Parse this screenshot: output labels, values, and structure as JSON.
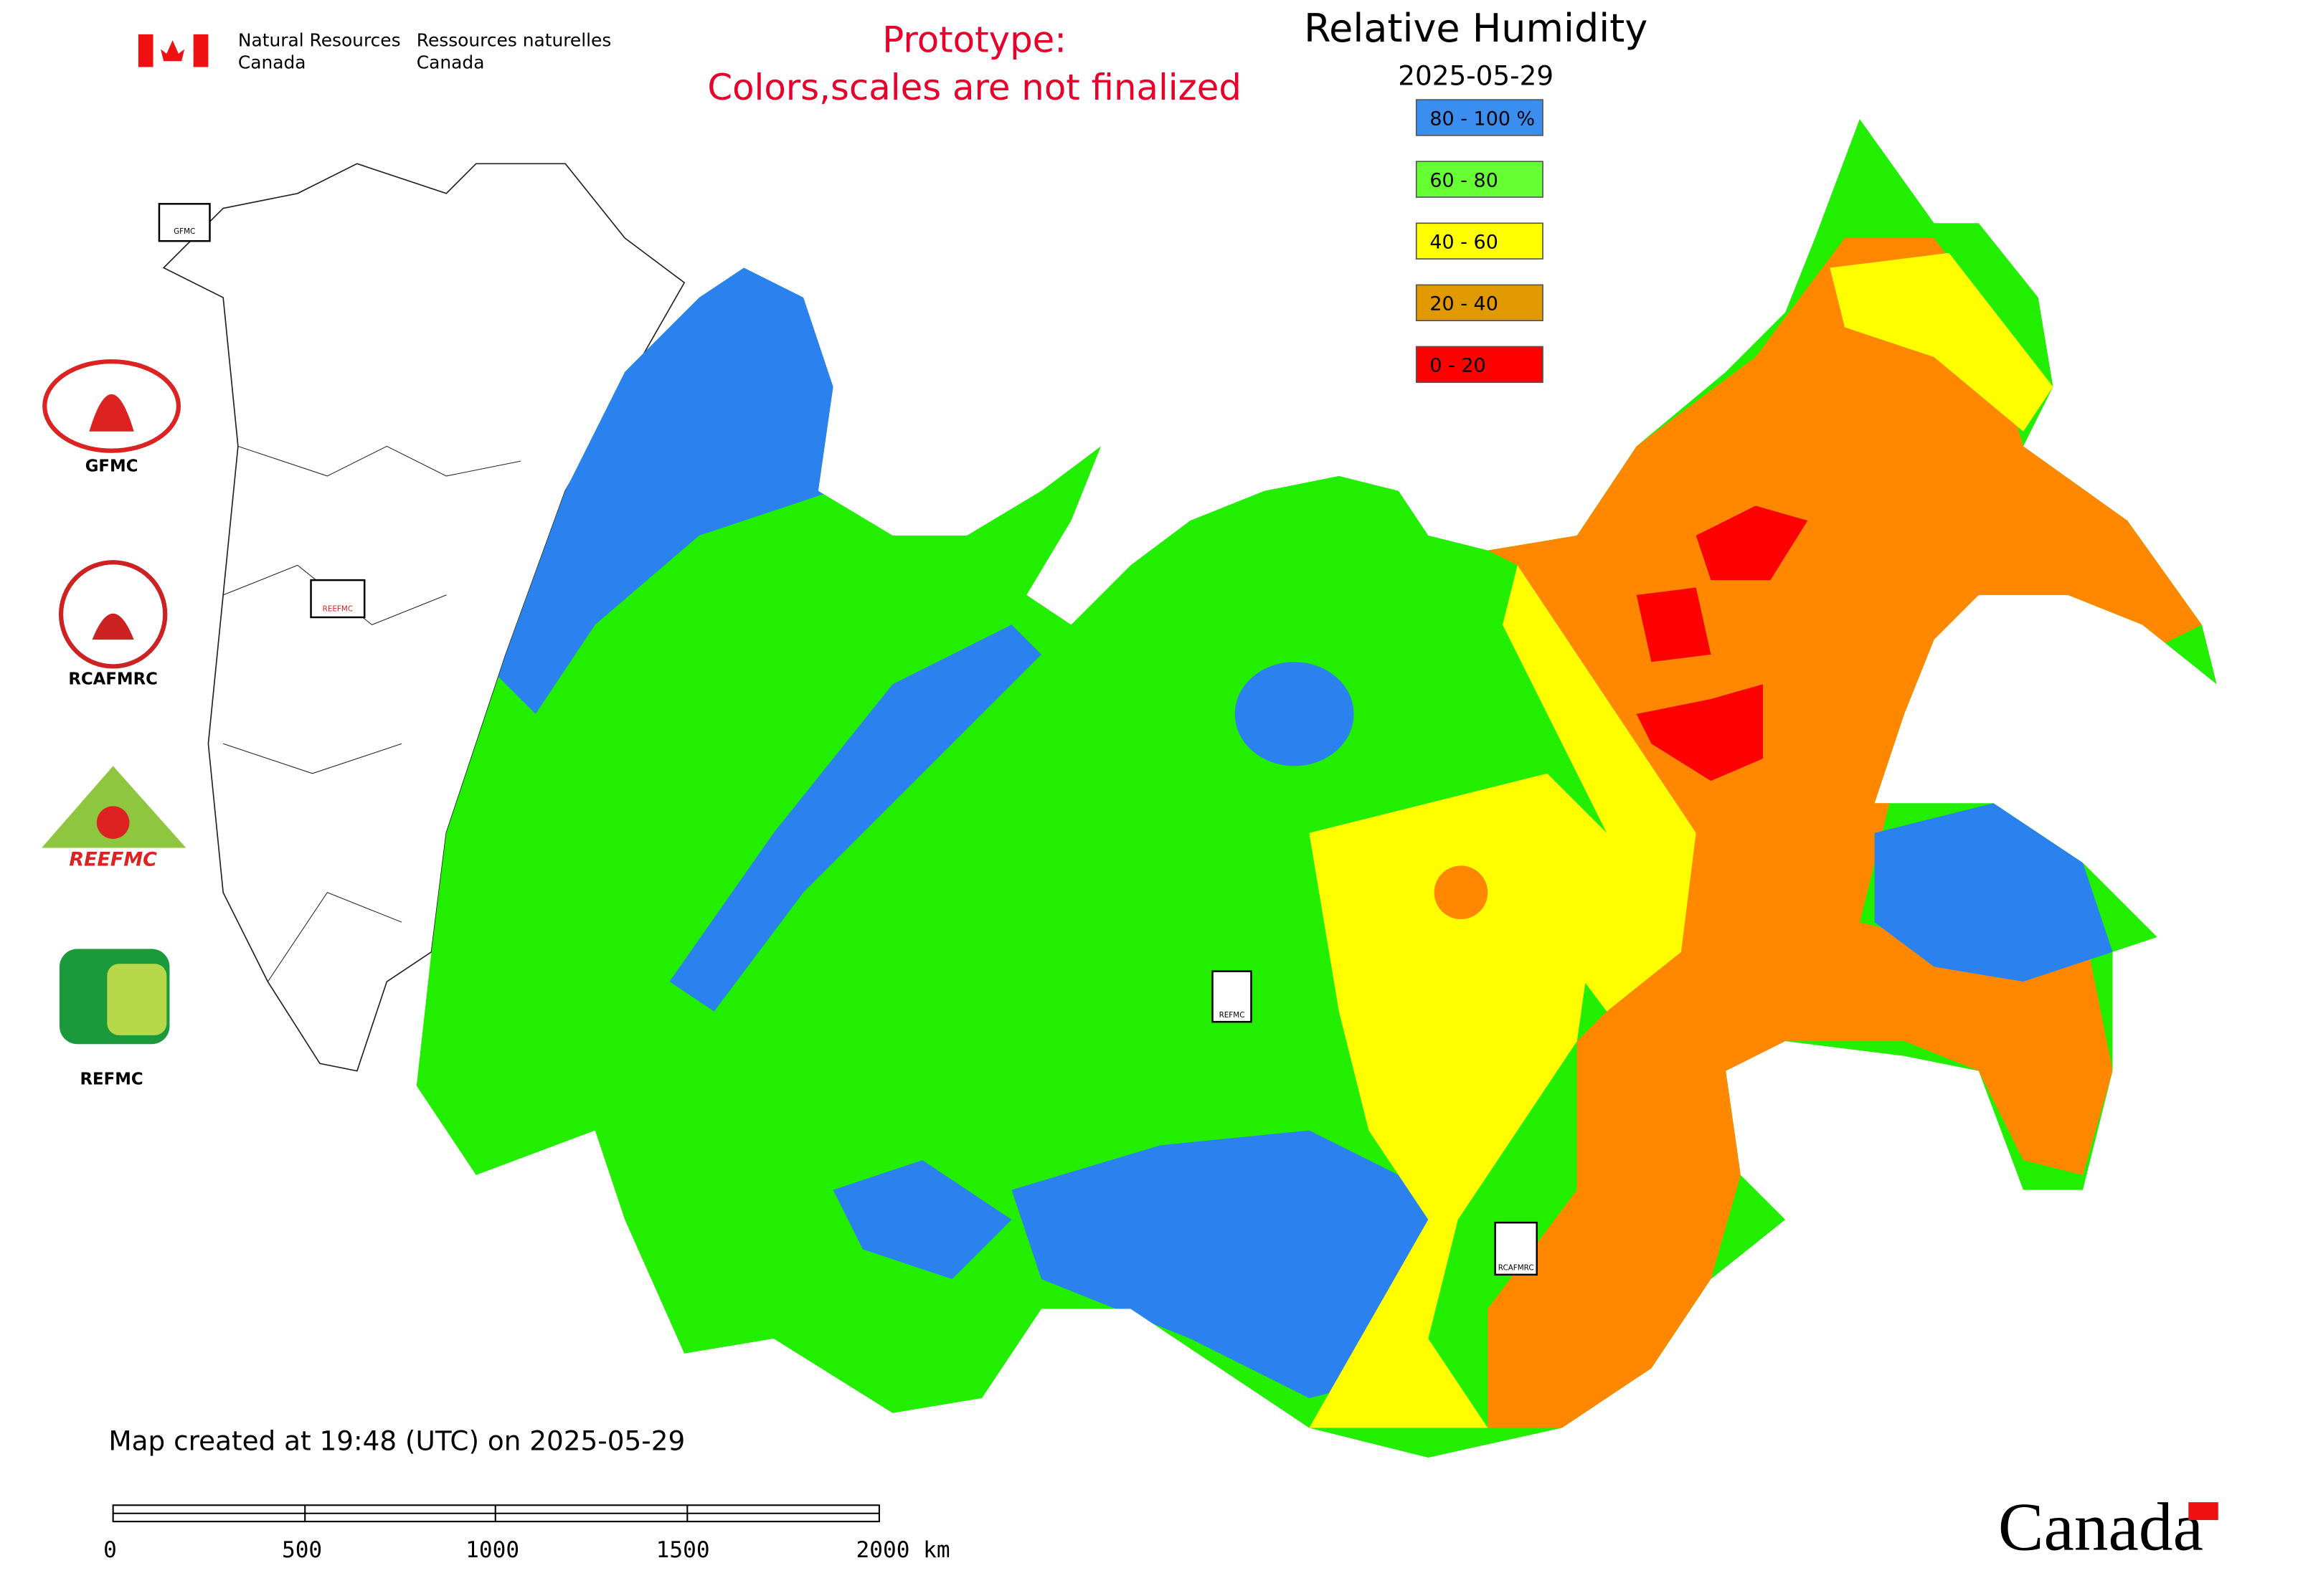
{
  "header": {
    "org_en": [
      "Natural Resources",
      "Canada"
    ],
    "org_fr": [
      "Ressources naturelles",
      "Canada"
    ],
    "notice": [
      "Prototype:",
      "Colors,scales are not finalized"
    ]
  },
  "map": {
    "title": "Relative Humidity",
    "date": "2025-05-29",
    "legend": [
      {
        "label": "80 - 100 %",
        "color": "#3a8ef0"
      },
      {
        "label": "60 - 80",
        "color": "#66ff33"
      },
      {
        "label": "40 - 60",
        "color": "#ffff00"
      },
      {
        "label": "20 - 40",
        "color": "#e09a00"
      },
      {
        "label": "0 - 20",
        "color": "#ff0000"
      }
    ],
    "markers": [
      "GFMC",
      "REEFMC",
      "REFMC",
      "RCAFMRC"
    ]
  },
  "logos": [
    "GFMC",
    "RCAFMRC",
    "REEFMC",
    "REFMC"
  ],
  "footer": {
    "created": "Map created at 19:48 (UTC) on 2025-05-29",
    "scale_labels": [
      "0",
      "500",
      "1000",
      "1500",
      "2000 km"
    ],
    "wordmark": "Canada"
  }
}
